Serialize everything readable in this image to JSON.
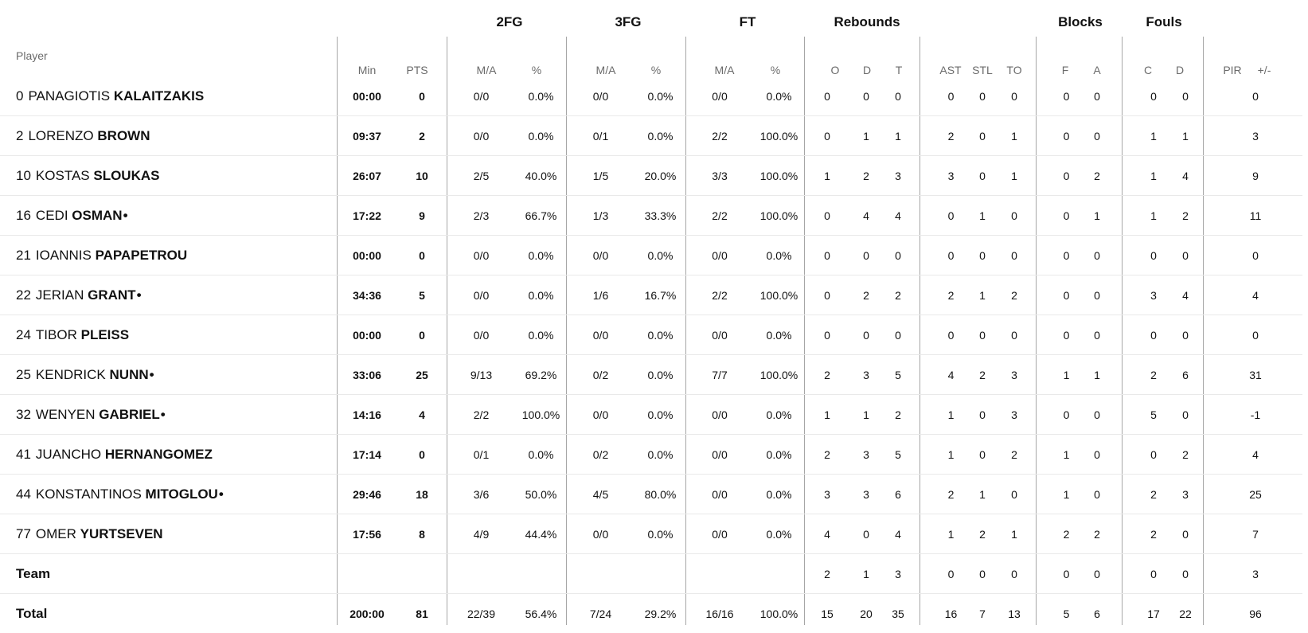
{
  "headers": {
    "player": "Player",
    "groups": {
      "fg2": "2FG",
      "fg3": "3FG",
      "ft": "FT",
      "rebounds": "Rebounds",
      "blocks": "Blocks",
      "fouls": "Fouls"
    },
    "columns": {
      "min": "Min",
      "pts": "PTS",
      "fg2_ma": "M/A",
      "fg2_pct": "%",
      "fg3_ma": "M/A",
      "fg3_pct": "%",
      "ft_ma": "M/A",
      "ft_pct": "%",
      "reb_o": "O",
      "reb_d": "D",
      "reb_t": "T",
      "ast": "AST",
      "stl": "STL",
      "to": "TO",
      "blk_f": "F",
      "blk_a": "A",
      "foul_c": "C",
      "foul_d": "D",
      "pir": "PIR",
      "plusminus": "+/-"
    }
  },
  "players": [
    {
      "number": "0",
      "first": "PANAGIOTIS",
      "last": "KALAITZAKIS",
      "starter": "",
      "min": "00:00",
      "pts": "0",
      "fg2_ma": "0/0",
      "fg2_pct": "0.0%",
      "fg3_ma": "0/0",
      "fg3_pct": "0.0%",
      "ft_ma": "0/0",
      "ft_pct": "0.0%",
      "reb_o": "0",
      "reb_d": "0",
      "reb_t": "0",
      "ast": "0",
      "stl": "0",
      "to": "0",
      "blk_f": "0",
      "blk_a": "0",
      "foul_c": "0",
      "foul_d": "0",
      "pir": "0",
      "plusminus": ""
    },
    {
      "number": "2",
      "first": "LORENZO",
      "last": "BROWN",
      "starter": "",
      "min": "09:37",
      "pts": "2",
      "fg2_ma": "0/0",
      "fg2_pct": "0.0%",
      "fg3_ma": "0/1",
      "fg3_pct": "0.0%",
      "ft_ma": "2/2",
      "ft_pct": "100.0%",
      "reb_o": "0",
      "reb_d": "1",
      "reb_t": "1",
      "ast": "2",
      "stl": "0",
      "to": "1",
      "blk_f": "0",
      "blk_a": "0",
      "foul_c": "1",
      "foul_d": "1",
      "pir": "3",
      "plusminus": ""
    },
    {
      "number": "10",
      "first": "KOSTAS",
      "last": "SLOUKAS",
      "starter": "",
      "min": "26:07",
      "pts": "10",
      "fg2_ma": "2/5",
      "fg2_pct": "40.0%",
      "fg3_ma": "1/5",
      "fg3_pct": "20.0%",
      "ft_ma": "3/3",
      "ft_pct": "100.0%",
      "reb_o": "1",
      "reb_d": "2",
      "reb_t": "3",
      "ast": "3",
      "stl": "0",
      "to": "1",
      "blk_f": "0",
      "blk_a": "2",
      "foul_c": "1",
      "foul_d": "4",
      "pir": "9",
      "plusminus": ""
    },
    {
      "number": "16",
      "first": "CEDI",
      "last": "OSMAN",
      "starter": "•",
      "min": "17:22",
      "pts": "9",
      "fg2_ma": "2/3",
      "fg2_pct": "66.7%",
      "fg3_ma": "1/3",
      "fg3_pct": "33.3%",
      "ft_ma": "2/2",
      "ft_pct": "100.0%",
      "reb_o": "0",
      "reb_d": "4",
      "reb_t": "4",
      "ast": "0",
      "stl": "1",
      "to": "0",
      "blk_f": "0",
      "blk_a": "1",
      "foul_c": "1",
      "foul_d": "2",
      "pir": "11",
      "plusminus": ""
    },
    {
      "number": "21",
      "first": "IOANNIS",
      "last": "PAPAPETROU",
      "starter": "",
      "min": "00:00",
      "pts": "0",
      "fg2_ma": "0/0",
      "fg2_pct": "0.0%",
      "fg3_ma": "0/0",
      "fg3_pct": "0.0%",
      "ft_ma": "0/0",
      "ft_pct": "0.0%",
      "reb_o": "0",
      "reb_d": "0",
      "reb_t": "0",
      "ast": "0",
      "stl": "0",
      "to": "0",
      "blk_f": "0",
      "blk_a": "0",
      "foul_c": "0",
      "foul_d": "0",
      "pir": "0",
      "plusminus": ""
    },
    {
      "number": "22",
      "first": "JERIAN",
      "last": "GRANT",
      "starter": "•",
      "min": "34:36",
      "pts": "5",
      "fg2_ma": "0/0",
      "fg2_pct": "0.0%",
      "fg3_ma": "1/6",
      "fg3_pct": "16.7%",
      "ft_ma": "2/2",
      "ft_pct": "100.0%",
      "reb_o": "0",
      "reb_d": "2",
      "reb_t": "2",
      "ast": "2",
      "stl": "1",
      "to": "2",
      "blk_f": "0",
      "blk_a": "0",
      "foul_c": "3",
      "foul_d": "4",
      "pir": "4",
      "plusminus": ""
    },
    {
      "number": "24",
      "first": "TIBOR",
      "last": "PLEISS",
      "starter": "",
      "min": "00:00",
      "pts": "0",
      "fg2_ma": "0/0",
      "fg2_pct": "0.0%",
      "fg3_ma": "0/0",
      "fg3_pct": "0.0%",
      "ft_ma": "0/0",
      "ft_pct": "0.0%",
      "reb_o": "0",
      "reb_d": "0",
      "reb_t": "0",
      "ast": "0",
      "stl": "0",
      "to": "0",
      "blk_f": "0",
      "blk_a": "0",
      "foul_c": "0",
      "foul_d": "0",
      "pir": "0",
      "plusminus": ""
    },
    {
      "number": "25",
      "first": "KENDRICK",
      "last": "NUNN",
      "starter": "•",
      "min": "33:06",
      "pts": "25",
      "fg2_ma": "9/13",
      "fg2_pct": "69.2%",
      "fg3_ma": "0/2",
      "fg3_pct": "0.0%",
      "ft_ma": "7/7",
      "ft_pct": "100.0%",
      "reb_o": "2",
      "reb_d": "3",
      "reb_t": "5",
      "ast": "4",
      "stl": "2",
      "to": "3",
      "blk_f": "1",
      "blk_a": "1",
      "foul_c": "2",
      "foul_d": "6",
      "pir": "31",
      "plusminus": ""
    },
    {
      "number": "32",
      "first": "WENYEN",
      "last": "GABRIEL",
      "starter": "•",
      "min": "14:16",
      "pts": "4",
      "fg2_ma": "2/2",
      "fg2_pct": "100.0%",
      "fg3_ma": "0/0",
      "fg3_pct": "0.0%",
      "ft_ma": "0/0",
      "ft_pct": "0.0%",
      "reb_o": "1",
      "reb_d": "1",
      "reb_t": "2",
      "ast": "1",
      "stl": "0",
      "to": "3",
      "blk_f": "0",
      "blk_a": "0",
      "foul_c": "5",
      "foul_d": "0",
      "pir": "-1",
      "plusminus": ""
    },
    {
      "number": "41",
      "first": "JUANCHO",
      "last": "HERNANGOMEZ",
      "starter": "",
      "min": "17:14",
      "pts": "0",
      "fg2_ma": "0/1",
      "fg2_pct": "0.0%",
      "fg3_ma": "0/2",
      "fg3_pct": "0.0%",
      "ft_ma": "0/0",
      "ft_pct": "0.0%",
      "reb_o": "2",
      "reb_d": "3",
      "reb_t": "5",
      "ast": "1",
      "stl": "0",
      "to": "2",
      "blk_f": "1",
      "blk_a": "0",
      "foul_c": "0",
      "foul_d": "2",
      "pir": "4",
      "plusminus": ""
    },
    {
      "number": "44",
      "first": "KONSTANTINOS",
      "last": "MITOGLOU",
      "starter": "•",
      "min": "29:46",
      "pts": "18",
      "fg2_ma": "3/6",
      "fg2_pct": "50.0%",
      "fg3_ma": "4/5",
      "fg3_pct": "80.0%",
      "ft_ma": "0/0",
      "ft_pct": "0.0%",
      "reb_o": "3",
      "reb_d": "3",
      "reb_t": "6",
      "ast": "2",
      "stl": "1",
      "to": "0",
      "blk_f": "1",
      "blk_a": "0",
      "foul_c": "2",
      "foul_d": "3",
      "pir": "25",
      "plusminus": ""
    },
    {
      "number": "77",
      "first": "OMER",
      "last": "YURTSEVEN",
      "starter": "",
      "min": "17:56",
      "pts": "8",
      "fg2_ma": "4/9",
      "fg2_pct": "44.4%",
      "fg3_ma": "0/0",
      "fg3_pct": "0.0%",
      "ft_ma": "0/0",
      "ft_pct": "0.0%",
      "reb_o": "4",
      "reb_d": "0",
      "reb_t": "4",
      "ast": "1",
      "stl": "2",
      "to": "1",
      "blk_f": "2",
      "blk_a": "2",
      "foul_c": "2",
      "foul_d": "0",
      "pir": "7",
      "plusminus": ""
    }
  ],
  "team": {
    "label": "Team",
    "min": "",
    "pts": "",
    "fg2_ma": "",
    "fg2_pct": "",
    "fg3_ma": "",
    "fg3_pct": "",
    "ft_ma": "",
    "ft_pct": "",
    "reb_o": "2",
    "reb_d": "1",
    "reb_t": "3",
    "ast": "0",
    "stl": "0",
    "to": "0",
    "blk_f": "0",
    "blk_a": "0",
    "foul_c": "0",
    "foul_d": "0",
    "pir": "3",
    "plusminus": ""
  },
  "total": {
    "label": "Total",
    "min": "200:00",
    "pts": "81",
    "fg2_ma": "22/39",
    "fg2_pct": "56.4%",
    "fg3_ma": "7/24",
    "fg3_pct": "29.2%",
    "ft_ma": "16/16",
    "ft_pct": "100.0%",
    "reb_o": "15",
    "reb_d": "20",
    "reb_t": "35",
    "ast": "16",
    "stl": "7",
    "to": "13",
    "blk_f": "5",
    "blk_a": "6",
    "foul_c": "17",
    "foul_d": "22",
    "pir": "96",
    "plusminus": ""
  }
}
